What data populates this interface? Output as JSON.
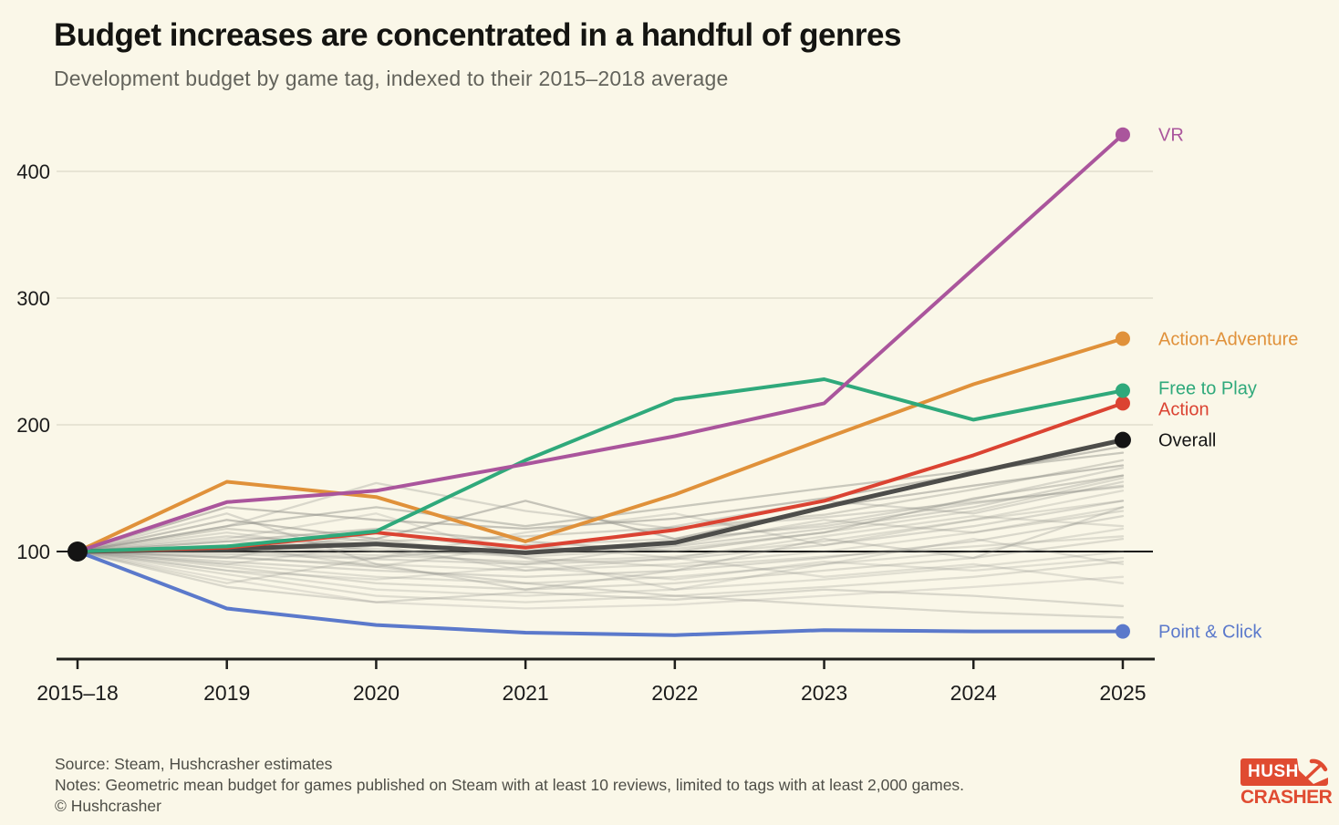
{
  "header": {
    "title": "Budget increases are concentrated in a handful of genres",
    "subtitle": "Development budget by game tag, indexed to their 2015–2018 average"
  },
  "footer": {
    "source": "Source: Steam, Hushcrasher estimates",
    "notes": "Notes: Geometric mean budget for games published on Steam with at least 10 reviews, limited to tags with at least 2,000 games.",
    "copyright": "© Hushcrasher",
    "logo": {
      "top": "HUSH",
      "bottom": "CRASHER",
      "color": "#e04b31"
    }
  },
  "chart_data": {
    "type": "line",
    "title": "Budget increases are concentrated in a handful of genres",
    "subtitle": "Development budget by game tag, indexed to their 2015–2018 average",
    "categories": [
      "2015–18",
      "2019",
      "2020",
      "2021",
      "2022",
      "2023",
      "2024",
      "2025"
    ],
    "y_ticks": [
      100,
      200,
      300,
      400
    ],
    "ylim": [
      20,
      445
    ],
    "baseline": 100,
    "grid": "horizontal",
    "legend_position": "right-of-line-endpoints",
    "colors": {
      "background": "#faf7e8",
      "gridline": "#dcd9c8",
      "axis": "#1f1f1c",
      "baseline": "#161616",
      "background_lines": "#8f8f88",
      "logo_red": "#e04b31"
    },
    "series": [
      {
        "name": "vr",
        "label": "VR",
        "color": "#aa559c",
        "values": [
          100,
          139,
          148,
          169,
          191,
          217,
          323,
          429
        ],
        "width": 4,
        "label_dy": 0
      },
      {
        "name": "action-adventure",
        "label": "Action-Adventure",
        "color": "#e0913a",
        "values": [
          100,
          155,
          143,
          108,
          145,
          189,
          232,
          268
        ],
        "width": 4,
        "label_dy": 0
      },
      {
        "name": "free-to-play",
        "label": "Free to Play",
        "color": "#2fa97b",
        "values": [
          100,
          104,
          116,
          172,
          220,
          236,
          204,
          227
        ],
        "width": 4,
        "label_dy": -3
      },
      {
        "name": "action",
        "label": "Action",
        "color": "#db4332",
        "values": [
          100,
          103,
          115,
          103,
          117,
          140,
          176,
          217
        ],
        "width": 4,
        "label_dy": 6
      },
      {
        "name": "overall",
        "label": "Overall",
        "color": "#4d4d4a",
        "dot_color": "#141414",
        "label_color": "#141414",
        "values": [
          100,
          102,
          106,
          99,
          107,
          135,
          162,
          188
        ],
        "width": 5,
        "label_dy": 0
      },
      {
        "name": "point-and-click",
        "label": "Point & Click",
        "color": "#5b79cb",
        "values": [
          100,
          55,
          42,
          36,
          34,
          38,
          37,
          37
        ],
        "width": 4,
        "label_dy": 0
      }
    ],
    "background_series": [
      {
        "o": 0.5,
        "v": [
          100,
          135,
          125,
          118,
          126,
          142,
          162,
          183
        ]
      },
      {
        "o": 0.3,
        "v": [
          100,
          120,
          154,
          132,
          118,
          127,
          139,
          151
        ]
      },
      {
        "o": 0.35,
        "v": [
          100,
          118,
          108,
          112,
          119,
          129,
          149,
          172
        ]
      },
      {
        "o": 0.3,
        "v": [
          100,
          112,
          105,
          100,
          108,
          122,
          141,
          166
        ]
      },
      {
        "o": 0.28,
        "v": [
          100,
          108,
          102,
          96,
          102,
          115,
          132,
          158
        ]
      },
      {
        "o": 0.32,
        "v": [
          100,
          104,
          100,
          98,
          104,
          118,
          135,
          160
        ]
      },
      {
        "o": 0.26,
        "v": [
          100,
          102,
          97,
          92,
          96,
          108,
          125,
          148
        ]
      },
      {
        "o": 0.3,
        "v": [
          100,
          98,
          94,
          90,
          94,
          105,
          120,
          140
        ]
      },
      {
        "o": 0.25,
        "v": [
          100,
          95,
          90,
          85,
          90,
          100,
          115,
          135
        ]
      },
      {
        "o": 0.3,
        "v": [
          100,
          92,
          85,
          80,
          85,
          95,
          108,
          128
        ]
      },
      {
        "o": 0.25,
        "v": [
          100,
          90,
          80,
          75,
          80,
          90,
          100,
          118
        ]
      },
      {
        "o": 0.28,
        "v": [
          100,
          88,
          75,
          70,
          75,
          85,
          95,
          110
        ]
      },
      {
        "o": 0.24,
        "v": [
          100,
          85,
          70,
          65,
          70,
          78,
          88,
          100
        ]
      },
      {
        "o": 0.26,
        "v": [
          100,
          82,
          65,
          60,
          65,
          72,
          80,
          92
        ]
      },
      {
        "o": 0.22,
        "v": [
          100,
          78,
          60,
          55,
          58,
          65,
          72,
          80
        ]
      },
      {
        "o": 0.3,
        "v": [
          100,
          130,
          90,
          70,
          85,
          110,
          95,
          135
        ]
      },
      {
        "o": 0.26,
        "v": [
          100,
          75,
          95,
          115,
          130,
          105,
          125,
          140
        ]
      },
      {
        "o": 0.24,
        "v": [
          100,
          110,
          130,
          95,
          70,
          90,
          110,
          90
        ]
      },
      {
        "o": 0.5,
        "v": [
          100,
          125,
          110,
          140,
          110,
          135,
          152,
          168
        ]
      },
      {
        "o": 0.3,
        "v": [
          100,
          95,
          115,
          100,
          120,
          140,
          130,
          155
        ]
      },
      {
        "o": 0.26,
        "v": [
          100,
          105,
          88,
          105,
          95,
          112,
          128,
          120
        ]
      },
      {
        "o": 0.3,
        "v": [
          100,
          72,
          60,
          68,
          62,
          70,
          65,
          57
        ]
      },
      {
        "o": 0.24,
        "v": [
          100,
          90,
          105,
          85,
          95,
          80,
          90,
          75
        ]
      },
      {
        "o": 0.28,
        "v": [
          100,
          115,
          100,
          90,
          105,
          125,
          115,
          132
        ]
      },
      {
        "o": 0.3,
        "v": [
          100,
          100,
          95,
          105,
          110,
          120,
          138,
          152
        ]
      },
      {
        "o": 0.45,
        "v": [
          100,
          120,
          135,
          120,
          135,
          150,
          164,
          178
        ]
      },
      {
        "o": 0.24,
        "v": [
          100,
          85,
          78,
          88,
          78,
          92,
          85,
          95
        ]
      },
      {
        "o": 0.4,
        "v": [
          100,
          108,
          118,
          108,
          100,
          115,
          142,
          160
        ]
      },
      {
        "o": 0.3,
        "v": [
          100,
          96,
          88,
          75,
          65,
          58,
          52,
          48
        ]
      },
      {
        "o": 0.26,
        "v": [
          100,
          102,
          110,
          95,
          88,
          96,
          104,
          112
        ]
      }
    ]
  }
}
